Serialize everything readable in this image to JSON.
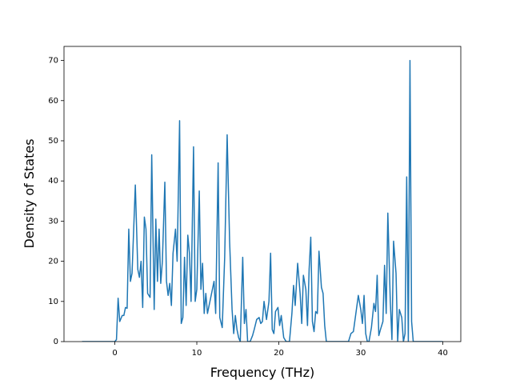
{
  "chart_data": {
    "type": "line",
    "xlabel": "Frequency (THz)",
    "ylabel": "Density of States",
    "xlim": [
      -6.2,
      42.2
    ],
    "ylim": [
      0,
      73.5
    ],
    "xticks": [
      0,
      10,
      20,
      30,
      40
    ],
    "yticks": [
      0,
      10,
      20,
      30,
      40,
      50,
      60,
      70
    ],
    "x": [
      -4,
      -2,
      0,
      0.2,
      0.4,
      0.6,
      0.9,
      1.1,
      1.3,
      1.5,
      1.7,
      1.9,
      2.1,
      2.5,
      2.8,
      3.0,
      3.2,
      3.4,
      3.6,
      3.8,
      4.0,
      4.3,
      4.5,
      4.8,
      5.0,
      5.2,
      5.4,
      5.6,
      5.8,
      6.1,
      6.3,
      6.5,
      6.7,
      6.9,
      7.1,
      7.4,
      7.6,
      7.9,
      8.1,
      8.3,
      8.5,
      8.7,
      8.9,
      9.1,
      9.3,
      9.6,
      9.8,
      10.0,
      10.3,
      10.5,
      10.7,
      10.9,
      11.1,
      11.3,
      11.6,
      11.9,
      12.1,
      12.3,
      12.6,
      12.8,
      13.1,
      13.4,
      13.7,
      14.0,
      14.3,
      14.5,
      14.7,
      14.9,
      15.1,
      15.3,
      15.6,
      15.8,
      16.0,
      16.2,
      16.5,
      16.8,
      17.0,
      17.3,
      17.6,
      17.8,
      18.0,
      18.2,
      18.5,
      18.8,
      19.0,
      19.2,
      19.4,
      19.6,
      19.9,
      20.1,
      20.3,
      20.6,
      20.9,
      21.3,
      21.6,
      21.8,
      22.0,
      22.3,
      22.6,
      22.8,
      23.0,
      23.3,
      23.5,
      23.7,
      23.9,
      24.1,
      24.3,
      24.5,
      24.7,
      24.9,
      25.2,
      25.4,
      25.6,
      25.8,
      26.2,
      28.5,
      28.8,
      29.1,
      29.4,
      29.7,
      30.0,
      30.2,
      30.4,
      30.6,
      30.8,
      31.0,
      31.3,
      31.6,
      31.8,
      32.0,
      32.2,
      32.4,
      32.7,
      32.9,
      33.1,
      33.3,
      33.6,
      33.8,
      34.0,
      34.3,
      34.5,
      34.7,
      35.0,
      35.2,
      35.4,
      35.6,
      35.8,
      36.0,
      36.2,
      36.4,
      37,
      40
    ],
    "series": [
      {
        "color": "#1f77b4",
        "values": [
          0,
          0,
          0,
          0.5,
          10.8,
          5,
          6.5,
          6.5,
          8.5,
          8.3,
          28,
          15,
          17,
          39,
          18,
          16,
          20,
          8.5,
          31,
          28,
          12,
          11,
          46.5,
          8,
          30.5,
          15,
          28,
          14.5,
          20,
          39.7,
          15,
          11.5,
          14.5,
          9,
          22,
          28,
          20,
          55,
          4.5,
          6,
          21,
          9,
          26.5,
          22,
          10,
          48.5,
          10,
          13,
          37.5,
          13,
          19.5,
          7,
          12,
          7,
          10,
          13,
          15,
          7,
          44.5,
          6,
          3.5,
          21,
          51.5,
          25,
          8,
          2,
          6.5,
          3,
          1,
          0,
          21,
          4.5,
          8,
          0,
          0,
          1.5,
          3,
          5.5,
          6,
          4.5,
          5,
          10,
          5.5,
          10,
          22,
          3,
          2,
          7.5,
          8.5,
          4,
          6.5,
          1,
          0,
          0,
          7,
          14,
          9,
          19.5,
          12,
          4.5,
          16.5,
          13,
          4,
          18,
          26,
          5,
          2.5,
          7.5,
          7,
          22.5,
          13.5,
          12,
          4,
          0,
          0,
          0,
          2,
          2.5,
          7,
          11.5,
          8,
          4.5,
          11.5,
          2,
          0,
          0,
          3.5,
          9.5,
          7.5,
          16.5,
          1.5,
          3,
          5,
          19,
          7,
          32,
          10,
          0.5,
          25,
          17,
          0,
          8,
          6,
          0,
          2,
          41,
          0,
          70,
          5,
          0,
          0,
          0
        ]
      }
    ]
  }
}
